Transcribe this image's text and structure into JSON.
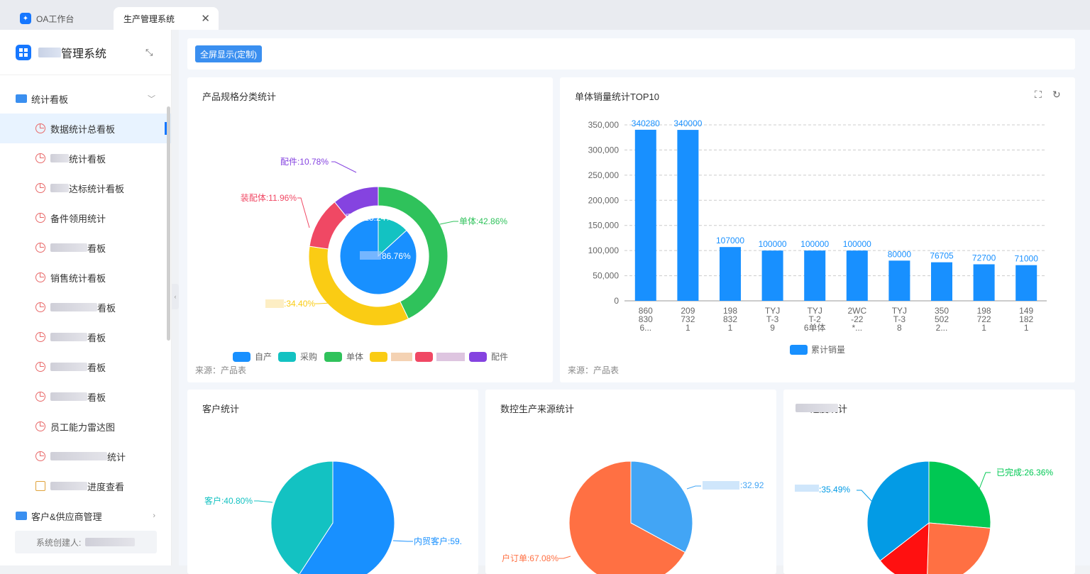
{
  "tabs": [
    {
      "label": "OA工作台"
    },
    {
      "label": "生产管理系统"
    }
  ],
  "sidebar": {
    "brand": "管理系统",
    "groups": [
      {
        "label": "统计看板"
      },
      {
        "label": "客户&供应商管理"
      }
    ],
    "items": [
      {
        "label": "数据统计总看板"
      },
      {
        "label": "统计看板"
      },
      {
        "label": "达标统计看板"
      },
      {
        "label": "备件领用统计"
      },
      {
        "label": "看板"
      },
      {
        "label": "销售统计看板"
      },
      {
        "label": "看板"
      },
      {
        "label": "看板"
      },
      {
        "label": "看板"
      },
      {
        "label": "看板"
      },
      {
        "label": "员工能力雷达图"
      },
      {
        "label": "统计"
      },
      {
        "label": "进度查看"
      }
    ],
    "creator": "系统创建人:"
  },
  "toolbar": {
    "fullscreen_label": "全屏显示(定制)"
  },
  "cards": {
    "spec": {
      "title": "产品规格分类统计",
      "source": "来源：产品表"
    },
    "sales": {
      "title": "单体销量统计TOP10",
      "source": "来源：产品表"
    },
    "customer": {
      "title": "客户统计"
    },
    "cnc": {
      "title": "数控生产来源统计"
    },
    "progress": {
      "title": "进度统计"
    }
  },
  "colors": {
    "blue": "#1890ff",
    "teal": "#13c2c2",
    "green": "#2fc25b",
    "yellow": "#facc14",
    "red": "#f04864",
    "purple": "#8543e0",
    "orange": "#ff7043"
  },
  "chart_data": [
    {
      "type": "pie",
      "title": "产品规格分类统计",
      "inner": [
        {
          "name": "采购",
          "value": 13.24
        },
        {
          "name": "",
          "value": 86.76
        }
      ],
      "outer": [
        {
          "name": "单体",
          "value": 42.86
        },
        {
          "name": "",
          "value": 34.4
        },
        {
          "name": "装配体",
          "value": 11.96
        },
        {
          "name": "配件",
          "value": 10.78
        }
      ],
      "inner_labels": [
        "采购:13.24%",
        "86.76%"
      ],
      "outer_labels": [
        "单体:42.86%",
        ":34.40%",
        "装配体:11.96%",
        "配件:10.78%"
      ],
      "legend": [
        "自产",
        "采购",
        "单体",
        "",
        "",
        "配件"
      ]
    },
    {
      "type": "bar",
      "title": "单体销量统计TOP10",
      "categories": [
        [
          "860",
          "830",
          "6..."
        ],
        [
          "209",
          "732",
          "1"
        ],
        [
          "198",
          "832",
          "1"
        ],
        [
          "TYJ",
          "T-3",
          "9"
        ],
        [
          "TYJ",
          "T-2",
          "6单体"
        ],
        [
          "2WC",
          "-22",
          "*..."
        ],
        [
          "TYJ",
          "T-3",
          "8"
        ],
        [
          "350",
          "502",
          "2..."
        ],
        [
          "198",
          "722",
          "1"
        ],
        [
          "149",
          "182",
          "1"
        ]
      ],
      "series": [
        {
          "name": "累计销量",
          "values": [
            340280,
            340000,
            107000,
            100000,
            100000,
            100000,
            80000,
            76705,
            72700,
            71000
          ]
        }
      ],
      "ylim": [
        0,
        350000
      ],
      "yticks": [
        "0",
        "50,000",
        "100,000",
        "150,000",
        "200,000",
        "250,000",
        "300,000",
        "350,000"
      ],
      "grid": true,
      "legend": "bottom"
    },
    {
      "type": "pie",
      "title": "客户统计",
      "slices": [
        {
          "name": "内贸客户",
          "value": 59.2
        },
        {
          "name": "客户",
          "value": 40.8
        }
      ],
      "labels": [
        "内贸客户:59.",
        "客户:40.80%"
      ]
    },
    {
      "type": "pie",
      "title": "数控生产来源统计",
      "slices": [
        {
          "name": "",
          "value": 32.92
        },
        {
          "name": "户订单",
          "value": 67.08
        }
      ],
      "labels": [
        ":32.92",
        "户订单:67.08%"
      ]
    },
    {
      "type": "pie",
      "title": "进度统计",
      "slices": [
        {
          "name": "已完成",
          "value": 26.36
        },
        {
          "name": "",
          "value": 24.15
        },
        {
          "name": "",
          "value": 14.0
        },
        {
          "name": "",
          "value": 35.49
        }
      ],
      "labels": [
        "已完成:26.36%",
        ":35.49%"
      ]
    }
  ]
}
